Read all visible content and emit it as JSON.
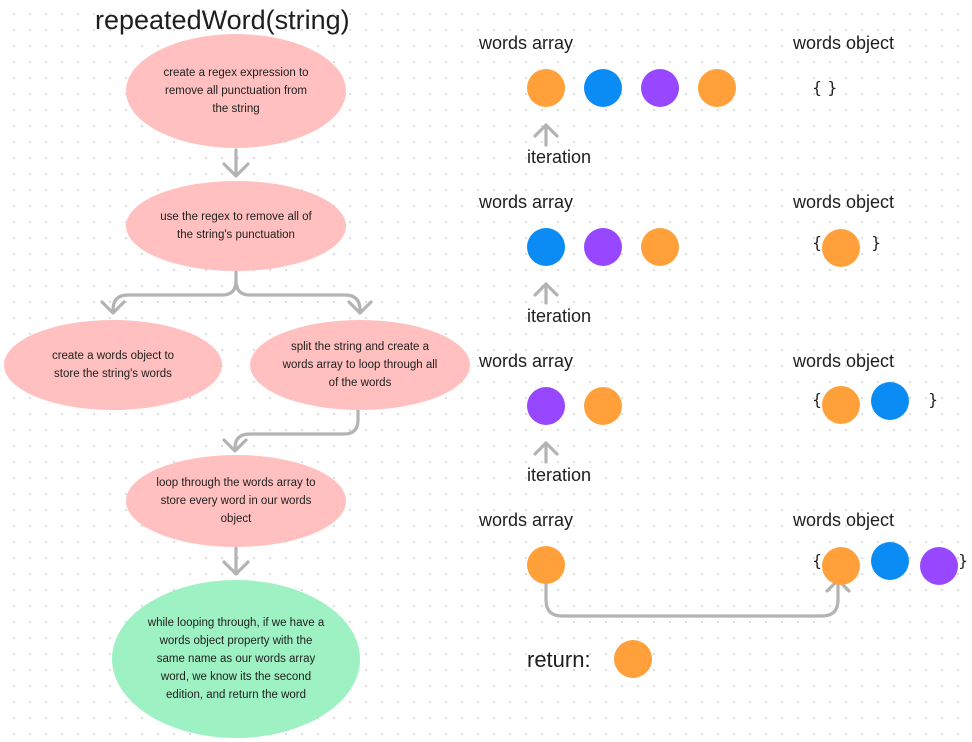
{
  "title": "repeatedWord(string)",
  "colors": {
    "orange": "#ffa03b",
    "blue": "#0b8cf5",
    "purple": "#9747ff",
    "pink_node": "#ffc0bf",
    "green_node": "#9ef1c3",
    "connector": "#b3b3b3"
  },
  "flow": {
    "step1": "create a regex expression to remove all punctuation from the string",
    "step2": "use the regex to remove all of the string's punctuation",
    "step3a": "create a words object to store the string's words",
    "step3b": "split the string and create a words array to loop through all of the words",
    "step4": "loop through the words array to store every word in our words object",
    "step5": "while looping through, if we have a words object property with the same name as our words array word, we know its the second edition, and return the word"
  },
  "stages": [
    {
      "array_label": "words array",
      "object_label": "words object",
      "array": [
        "orange",
        "blue",
        "purple",
        "orange"
      ],
      "object": []
    },
    {
      "array_label": "words array",
      "object_label": "words object",
      "array": [
        "blue",
        "purple",
        "orange"
      ],
      "object": [
        "orange"
      ]
    },
    {
      "array_label": "words array",
      "object_label": "words object",
      "array": [
        "purple",
        "orange"
      ],
      "object": [
        "orange",
        "blue"
      ]
    },
    {
      "array_label": "words array",
      "object_label": "words object",
      "array": [
        "orange"
      ],
      "object": [
        "orange",
        "blue",
        "purple"
      ]
    }
  ],
  "iteration_label": "iteration",
  "brace_open": "{",
  "brace_close": "}",
  "empty_object": "{ }",
  "return_label": "return:",
  "return_value": "orange"
}
